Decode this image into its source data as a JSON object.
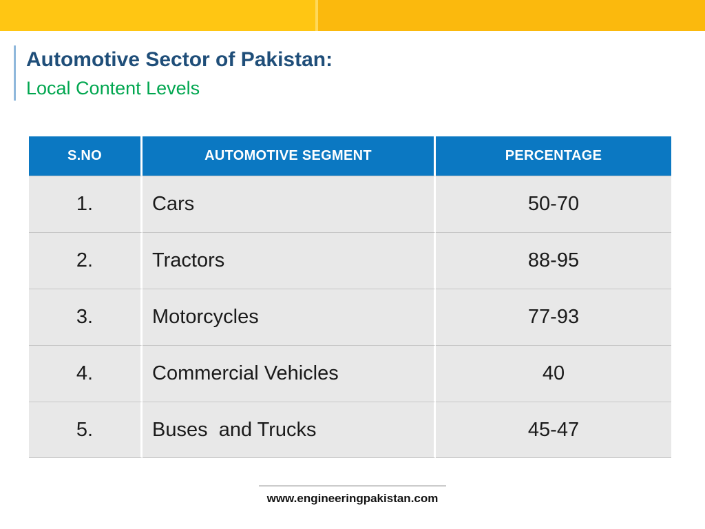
{
  "slide": {
    "title": "Automotive Sector of Pakistan:",
    "subtitle": "Local Content Levels"
  },
  "table": {
    "columns": [
      "S.NO",
      "AUTOMOTIVE SEGMENT",
      "PERCENTAGE"
    ],
    "rows": [
      {
        "sno": "1.",
        "segment": "Cars",
        "percentage": "50-70"
      },
      {
        "sno": "2.",
        "segment": "Tractors",
        "percentage": "88-95"
      },
      {
        "sno": "3.",
        "segment": "Motorcycles",
        "percentage": "77-93"
      },
      {
        "sno": "4.",
        "segment": "Commercial Vehicles",
        "percentage": "40"
      },
      {
        "sno": "5.",
        "segment": "Buses  and Trucks",
        "percentage": "45-47"
      }
    ]
  },
  "footer": {
    "website": "www.engineeringpakistan.com"
  },
  "colors": {
    "banner_left": "#FFC613",
    "banner_right": "#FBB90D",
    "title_blue": "#1F4E79",
    "subtitle_green": "#00A64F",
    "table_header_bg": "#0B78C2",
    "table_row_bg": "#E8E8E8",
    "accent_line": "#8FB8DC"
  }
}
